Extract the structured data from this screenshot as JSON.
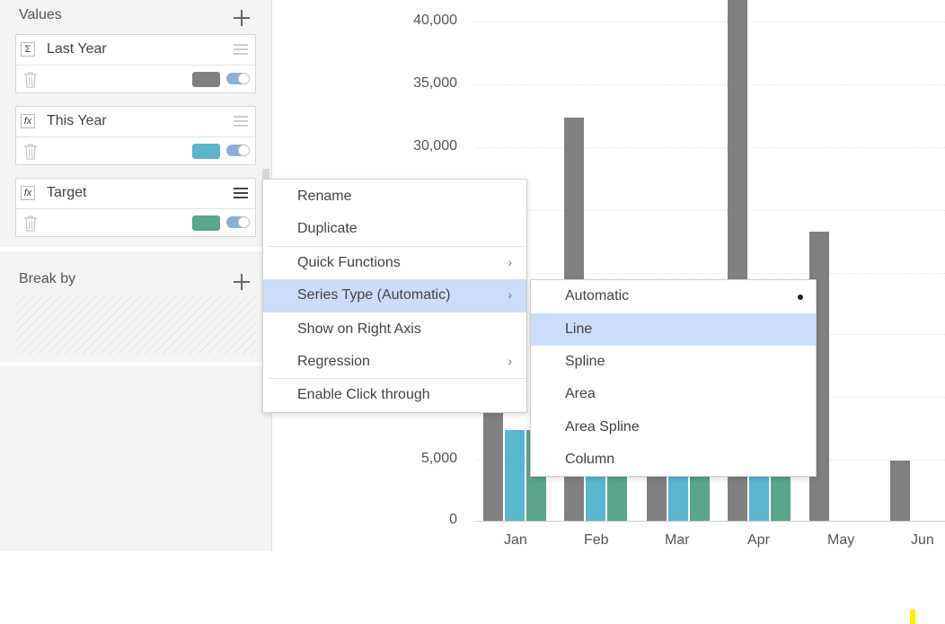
{
  "left_panel": {
    "values_title": "Values",
    "values": [
      {
        "icon": "sigma-icon",
        "glyph": "Σ",
        "label": "Last Year",
        "color": "#808080"
      },
      {
        "icon": "fx-icon",
        "glyph": "fx",
        "label": "This Year",
        "color": "#5ab6cc"
      },
      {
        "icon": "fx-icon",
        "glyph": "fx",
        "label": "Target",
        "color": "#5aa58c"
      }
    ],
    "break_by_title": "Break by"
  },
  "chart_data": {
    "type": "bar",
    "categories": [
      "Jan",
      "Feb",
      "Mar",
      "Apr",
      "May",
      "Jun"
    ],
    "y_ticks": [
      "0",
      "5,000",
      "30,000",
      "35,000",
      "40,000"
    ],
    "series": [
      {
        "name": "Last Year",
        "color": "#808080",
        "values": [
          9000,
          32300,
          null,
          42000,
          23000,
          4900
        ]
      },
      {
        "name": "This Year",
        "color": "#5ab6cc",
        "values": [
          7300,
          null,
          null,
          null,
          0,
          0
        ]
      },
      {
        "name": "Target",
        "color": "#5aa58c",
        "values": [
          7300,
          null,
          null,
          null,
          0,
          0
        ]
      }
    ],
    "ylim": [
      0,
      42000
    ]
  },
  "context_menu": {
    "items": [
      {
        "label": "Rename"
      },
      {
        "label": "Duplicate"
      },
      {
        "label": "Quick Functions",
        "submenu": true
      },
      {
        "label": "Series Type (Automatic)",
        "submenu": true,
        "highlighted": true
      },
      {
        "label": "Show on Right Axis"
      },
      {
        "label": "Regression",
        "submenu": true
      },
      {
        "label": "Enable Click through"
      }
    ]
  },
  "submenu": {
    "items": [
      {
        "label": "Automatic",
        "selected": true
      },
      {
        "label": "Line",
        "highlighted": true
      },
      {
        "label": "Spline"
      },
      {
        "label": "Area"
      },
      {
        "label": "Area Spline"
      },
      {
        "label": "Column"
      }
    ]
  }
}
